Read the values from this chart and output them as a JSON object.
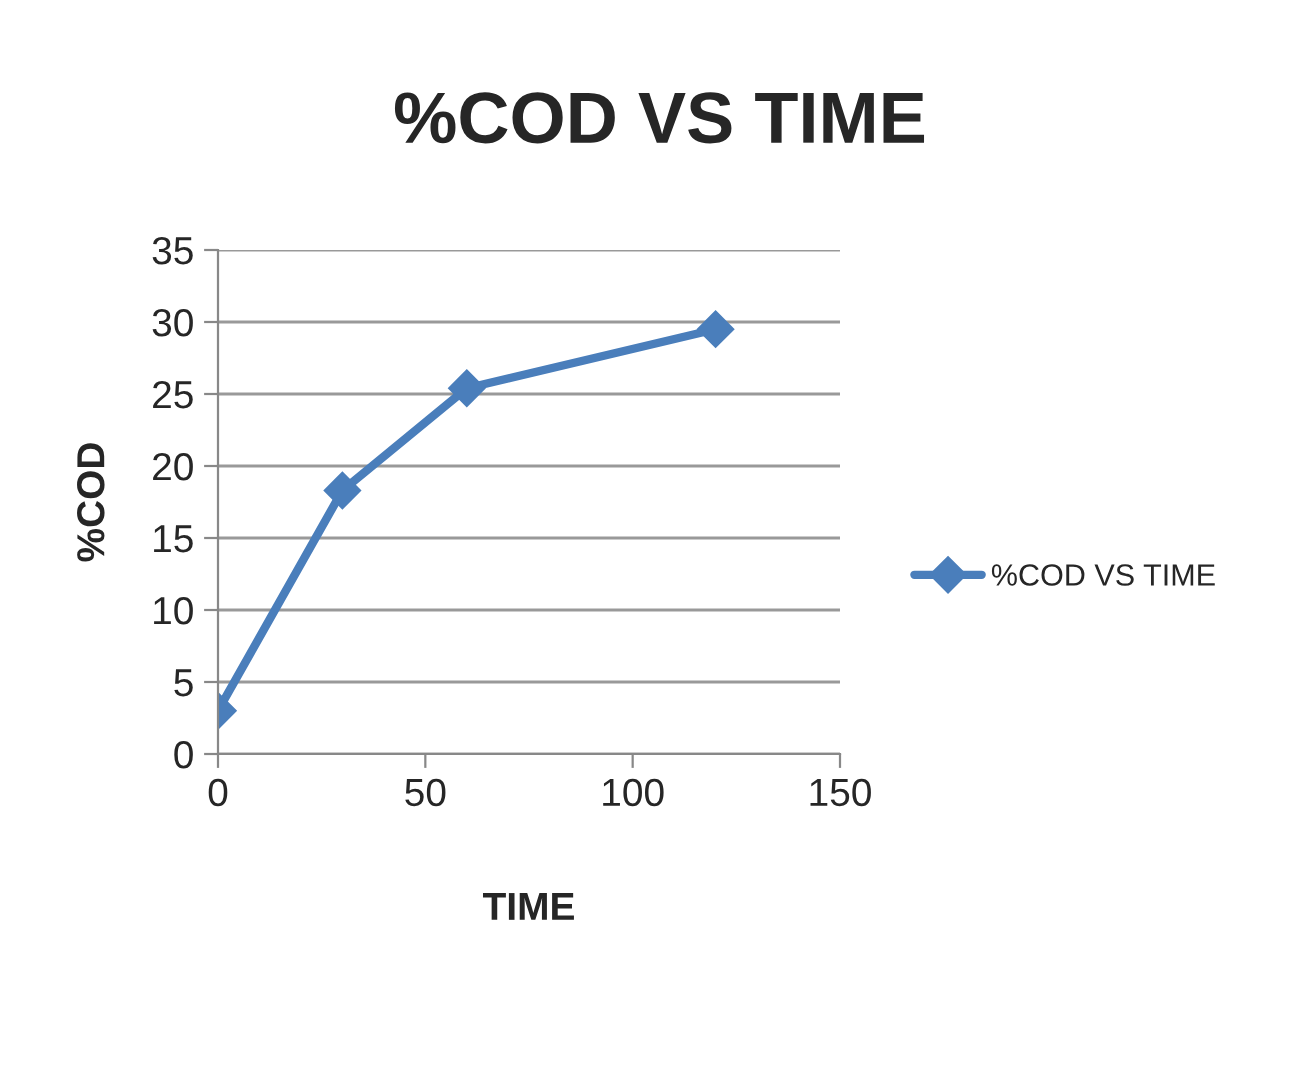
{
  "chart_data": {
    "type": "line",
    "title": "%COD VS TIME",
    "xlabel": "TIME",
    "ylabel": "%COD",
    "x": [
      0,
      30,
      60,
      120
    ],
    "series": [
      {
        "name": "%COD VS TIME",
        "color": "#4a7ebb",
        "values": [
          3.0,
          18.3,
          25.4,
          29.5
        ]
      }
    ],
    "xlim": [
      0,
      150
    ],
    "xticks": [
      0,
      50,
      100,
      150
    ],
    "ylim": [
      0,
      35
    ],
    "yticks": [
      0,
      5,
      10,
      15,
      20,
      25,
      30,
      35
    ],
    "grid": "y",
    "legend": "right",
    "marker": "diamond",
    "line_style": "solid"
  }
}
